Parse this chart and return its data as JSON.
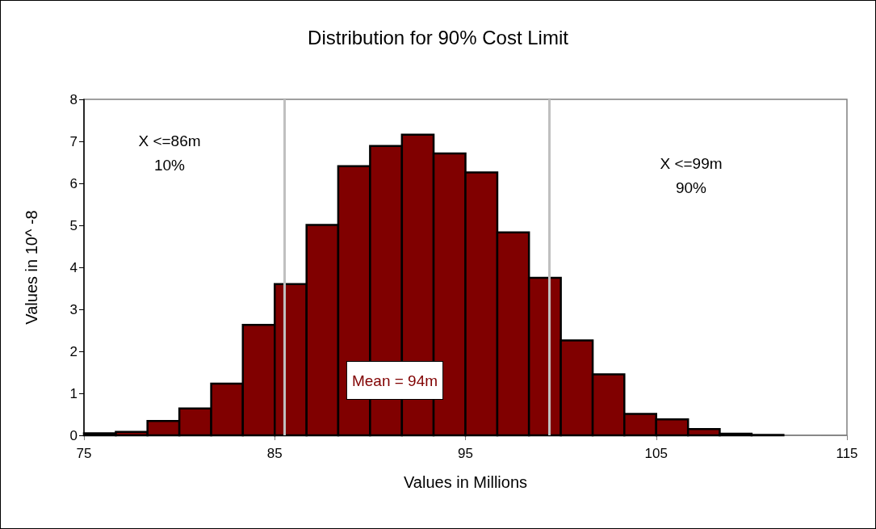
{
  "chart_data": {
    "type": "histogram",
    "title": "Distribution for 90% Cost Limit",
    "xlabel": "Values in Millions",
    "ylabel": "Values in 10^ -8",
    "bins": [
      75,
      76.67,
      78.33,
      80,
      81.67,
      83.33,
      85,
      86.67,
      88.33,
      90,
      91.67,
      93.33,
      95,
      96.67,
      98.33,
      100,
      101.67,
      103.33,
      105,
      106.67,
      108.33,
      110,
      111.67
    ],
    "values": [
      0.05,
      0.08,
      0.34,
      0.64,
      1.23,
      2.63,
      3.6,
      5.01,
      6.41,
      6.89,
      7.16,
      6.71,
      6.26,
      4.83,
      3.75,
      2.26,
      1.45,
      0.51,
      0.38,
      0.15,
      0.04,
      0.01
    ],
    "color": "#800000",
    "xlim": [
      75,
      115
    ],
    "xticks": [
      75,
      85,
      95,
      105,
      115
    ],
    "ylim": [
      0,
      8
    ],
    "yticks": [
      0,
      1,
      2,
      3,
      4,
      5,
      6,
      7,
      8
    ],
    "grid": false,
    "ref_lines": [
      {
        "axis": "x",
        "value": 85.5,
        "color": "#c0c0c0"
      },
      {
        "axis": "x",
        "value": 99.4,
        "color": "#c0c0c0"
      }
    ],
    "annotations": [
      "X <=86m\n10%",
      "X <=99m\n90%",
      "Mean = 94m"
    ]
  }
}
